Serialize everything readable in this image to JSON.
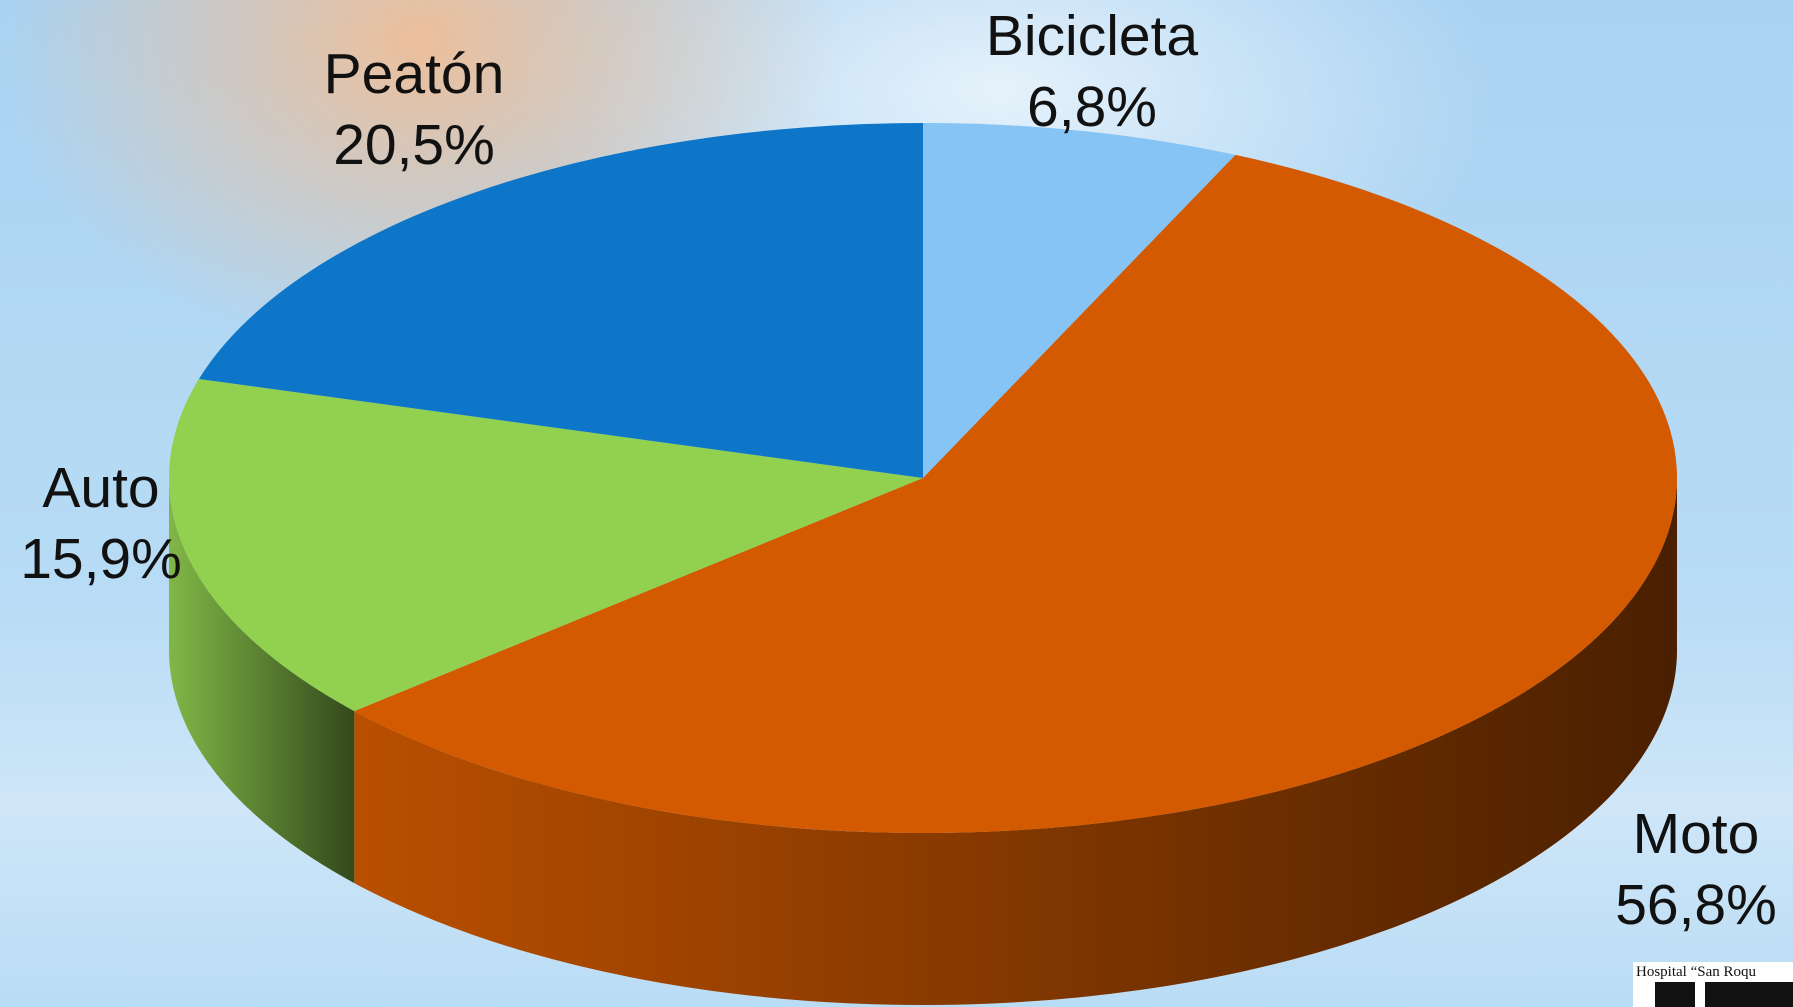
{
  "chart_data": {
    "type": "pie3d",
    "categories": [
      "Bicicleta",
      "Moto",
      "Auto",
      "Peatón"
    ],
    "values": [
      6.8,
      56.8,
      15.9,
      20.5
    ],
    "value_labels": [
      "6,8%",
      "56,8%",
      "15,9%",
      "20,5%"
    ],
    "colors": [
      "#85c4f5",
      "#d35a00",
      "#92d050",
      "#0e76c8"
    ]
  },
  "logo": {
    "text": "Hospital “San Roqu"
  }
}
